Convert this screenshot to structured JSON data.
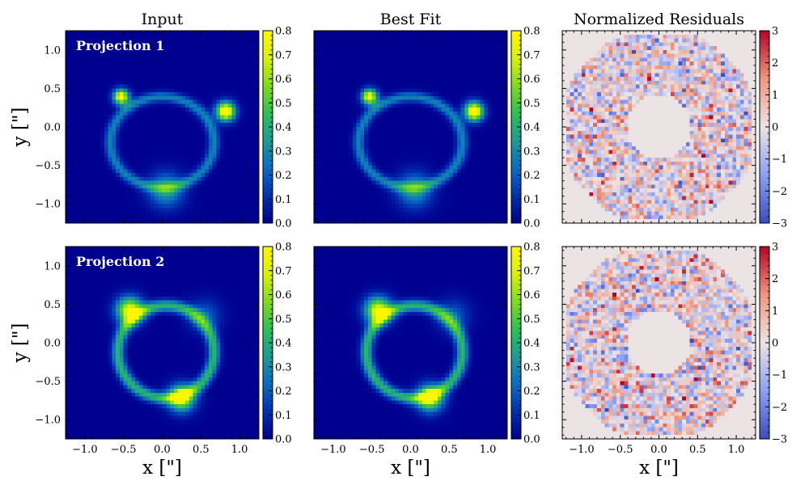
{
  "figure": {
    "width": 1000,
    "height": 600
  },
  "colors": {
    "jet_stops": [
      "#00008f",
      "#0030b0",
      "#0a6cc4",
      "#1f9a94",
      "#2fbf55",
      "#7fdb1c",
      "#d8f208",
      "#fff700"
    ],
    "residual_low": "#3b4cc0",
    "residual_mid": "#ece3e4",
    "residual_high": "#b40426",
    "label_text": "#ffffff"
  },
  "chart_data": [
    {
      "type": "heatmap",
      "name": "input-proj1",
      "title": "Input",
      "annotation": "Projection 1",
      "ylabel": "y [\"]",
      "xlabel": "",
      "colormap": "jet",
      "vmin": 0.0,
      "vmax": 0.8,
      "xlim": [
        -1.25,
        1.25
      ],
      "ylim": [
        -1.25,
        1.25
      ],
      "xticks": [
        "−1.0",
        "−0.5",
        "0.0",
        "0.5",
        "1.0"
      ],
      "xtick_values": [
        -1.0,
        -0.5,
        0.0,
        0.5,
        1.0
      ],
      "yticks": [
        "−1.0",
        "−0.5",
        "0.0",
        "0.5",
        "1.0"
      ],
      "ytick_values": [
        -1.0,
        -0.5,
        0.0,
        0.5,
        1.0
      ],
      "show_xticklabels": false,
      "show_yticklabels": true,
      "colorbar_ticks": [
        "0.0",
        "0.1",
        "0.2",
        "0.3",
        "0.4",
        "0.5",
        "0.6",
        "0.7",
        "0.8"
      ],
      "colorbar_values": [
        0.0,
        0.1,
        0.2,
        0.3,
        0.4,
        0.5,
        0.6,
        0.7,
        0.8
      ],
      "ring": {
        "center": [
          0.0,
          -0.2
        ],
        "radii": [
          0.67,
          0.59
        ],
        "width": 0.07,
        "base": 0.28
      },
      "blobs": [
        {
          "x": -0.53,
          "y": 0.39,
          "amp": 0.82,
          "sigma": 0.07
        },
        {
          "x": 0.82,
          "y": 0.2,
          "amp": 0.9,
          "sigma": 0.085
        },
        {
          "x": 0.05,
          "y": -0.82,
          "amp": 0.35,
          "sigma": 0.16
        }
      ]
    },
    {
      "type": "heatmap",
      "name": "bestfit-proj1",
      "title": "Best Fit",
      "annotation": "",
      "ylabel": "",
      "xlabel": "",
      "colormap": "jet",
      "vmin": 0.0,
      "vmax": 0.8,
      "xlim": [
        -1.25,
        1.25
      ],
      "ylim": [
        -1.25,
        1.25
      ],
      "xticks": [
        "−1.0",
        "−0.5",
        "0.0",
        "0.5",
        "1.0"
      ],
      "xtick_values": [
        -1.0,
        -0.5,
        0.0,
        0.5,
        1.0
      ],
      "yticks": [
        "−1.0",
        "−0.5",
        "0.0",
        "0.5",
        "1.0"
      ],
      "ytick_values": [
        -1.0,
        -0.5,
        0.0,
        0.5,
        1.0
      ],
      "show_xticklabels": false,
      "show_yticklabels": false,
      "colorbar_ticks": [
        "0.0",
        "0.1",
        "0.2",
        "0.3",
        "0.4",
        "0.5",
        "0.6",
        "0.7",
        "0.8"
      ],
      "colorbar_values": [
        0.0,
        0.1,
        0.2,
        0.3,
        0.4,
        0.5,
        0.6,
        0.7,
        0.8
      ],
      "ring": {
        "center": [
          0.0,
          -0.2
        ],
        "radii": [
          0.67,
          0.59
        ],
        "width": 0.07,
        "base": 0.28
      },
      "blobs": [
        {
          "x": -0.53,
          "y": 0.39,
          "amp": 0.8,
          "sigma": 0.07
        },
        {
          "x": 0.82,
          "y": 0.2,
          "amp": 0.88,
          "sigma": 0.085
        },
        {
          "x": 0.05,
          "y": -0.82,
          "amp": 0.34,
          "sigma": 0.16
        }
      ]
    },
    {
      "type": "heatmap",
      "name": "residuals-proj1",
      "title": "Normalized Residuals",
      "annotation": "",
      "ylabel": "",
      "xlabel": "",
      "colormap": "coolwarm",
      "vmin": -3,
      "vmax": 3,
      "xlim": [
        -1.25,
        1.25
      ],
      "ylim": [
        -1.25,
        1.25
      ],
      "xticks": [
        "−1.0",
        "−0.5",
        "0.0",
        "0.5",
        "1.0"
      ],
      "xtick_values": [
        -1.0,
        -0.5,
        0.0,
        0.5,
        1.0
      ],
      "yticks": [
        "−1.0",
        "−0.5",
        "0.0",
        "0.5",
        "1.0"
      ],
      "ytick_values": [
        -1.0,
        -0.5,
        0.0,
        0.5,
        1.0
      ],
      "show_xticklabels": false,
      "show_yticklabels": false,
      "colorbar_ticks": [
        "−3",
        "−2",
        "−1",
        "0",
        "1",
        "2",
        "3"
      ],
      "colorbar_values": [
        -3,
        -2,
        -1,
        0,
        1,
        2,
        3
      ],
      "mask": {
        "inner_radius": 0.42,
        "outer_radius": 1.27
      },
      "seed": 11
    },
    {
      "type": "heatmap",
      "name": "input-proj2",
      "title": "",
      "annotation": "Projection 2",
      "ylabel": "y [\"]",
      "xlabel": "x [\"]",
      "colormap": "jet",
      "vmin": 0.0,
      "vmax": 0.8,
      "xlim": [
        -1.25,
        1.25
      ],
      "ylim": [
        -1.25,
        1.25
      ],
      "xticks": [
        "−1.0",
        "−0.5",
        "0.0",
        "0.5",
        "1.0"
      ],
      "xtick_values": [
        -1.0,
        -0.5,
        0.0,
        0.5,
        1.0
      ],
      "yticks": [
        "−1.0",
        "−0.5",
        "0.0",
        "0.5",
        "1.0"
      ],
      "ytick_values": [
        -1.0,
        -0.5,
        0.0,
        0.5,
        1.0
      ],
      "show_xticklabels": true,
      "show_yticklabels": true,
      "colorbar_ticks": [
        "0.0",
        "0.1",
        "0.2",
        "0.3",
        "0.4",
        "0.5",
        "0.6",
        "0.7",
        "0.8"
      ],
      "colorbar_values": [
        0.0,
        0.1,
        0.2,
        0.3,
        0.4,
        0.5,
        0.6,
        0.7,
        0.8
      ],
      "ring": {
        "center": [
          0.05,
          -0.12
        ],
        "radii": [
          0.62,
          0.6
        ],
        "width": 0.08,
        "base": 0.42
      },
      "blobs": [
        {
          "x": -0.42,
          "y": 0.42,
          "amp": 0.75,
          "sigma": 0.12
        },
        {
          "x": 0.25,
          "y": -0.72,
          "amp": 0.7,
          "sigma": 0.12
        },
        {
          "x": 0.55,
          "y": 0.35,
          "amp": 0.2,
          "sigma": 0.15
        }
      ]
    },
    {
      "type": "heatmap",
      "name": "bestfit-proj2",
      "title": "",
      "annotation": "",
      "ylabel": "",
      "xlabel": "x [\"]",
      "colormap": "jet",
      "vmin": 0.0,
      "vmax": 0.8,
      "xlim": [
        -1.25,
        1.25
      ],
      "ylim": [
        -1.25,
        1.25
      ],
      "xticks": [
        "−1.0",
        "−0.5",
        "0.0",
        "0.5",
        "1.0"
      ],
      "xtick_values": [
        -1.0,
        -0.5,
        0.0,
        0.5,
        1.0
      ],
      "yticks": [
        "−1.0",
        "−0.5",
        "0.0",
        "0.5",
        "1.0"
      ],
      "ytick_values": [
        -1.0,
        -0.5,
        0.0,
        0.5,
        1.0
      ],
      "show_xticklabels": true,
      "show_yticklabels": false,
      "colorbar_ticks": [
        "0.0",
        "0.1",
        "0.2",
        "0.3",
        "0.4",
        "0.5",
        "0.6",
        "0.7",
        "0.8"
      ],
      "colorbar_values": [
        0.0,
        0.1,
        0.2,
        0.3,
        0.4,
        0.5,
        0.6,
        0.7,
        0.8
      ],
      "ring": {
        "center": [
          0.05,
          -0.12
        ],
        "radii": [
          0.62,
          0.6
        ],
        "width": 0.08,
        "base": 0.42
      },
      "blobs": [
        {
          "x": -0.42,
          "y": 0.42,
          "amp": 0.74,
          "sigma": 0.12
        },
        {
          "x": 0.25,
          "y": -0.72,
          "amp": 0.69,
          "sigma": 0.12
        },
        {
          "x": 0.55,
          "y": 0.35,
          "amp": 0.2,
          "sigma": 0.15
        }
      ]
    },
    {
      "type": "heatmap",
      "name": "residuals-proj2",
      "title": "",
      "annotation": "",
      "ylabel": "",
      "xlabel": "x [\"]",
      "colormap": "coolwarm",
      "vmin": -3,
      "vmax": 3,
      "xlim": [
        -1.25,
        1.25
      ],
      "ylim": [
        -1.25,
        1.25
      ],
      "xticks": [
        "−1.0",
        "−0.5",
        "0.0",
        "0.5",
        "1.0"
      ],
      "xtick_values": [
        -1.0,
        -0.5,
        0.0,
        0.5,
        1.0
      ],
      "yticks": [
        "−1.0",
        "−0.5",
        "0.0",
        "0.5",
        "1.0"
      ],
      "ytick_values": [
        -1.0,
        -0.5,
        0.0,
        0.5,
        1.0
      ],
      "show_xticklabels": true,
      "show_yticklabels": false,
      "colorbar_ticks": [
        "−3",
        "−2",
        "−1",
        "0",
        "1",
        "2",
        "3"
      ],
      "colorbar_values": [
        -3,
        -2,
        -1,
        0,
        1,
        2,
        3
      ],
      "mask": {
        "inner_radius": 0.42,
        "outer_radius": 1.27
      },
      "seed": 29
    }
  ]
}
